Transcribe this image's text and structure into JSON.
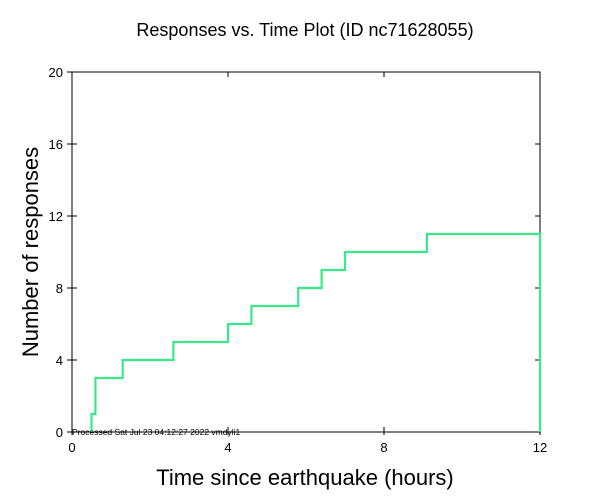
{
  "chart_data": {
    "type": "line",
    "title": "Responses vs. Time Plot (ID nc71628055)",
    "xlabel": "Time since earthquake (hours)",
    "ylabel": "Number of responses",
    "xlim": [
      0,
      12
    ],
    "ylim": [
      0,
      20
    ],
    "x_ticks": [
      0,
      4,
      8,
      12
    ],
    "y_ticks": [
      0,
      4,
      8,
      12,
      16,
      20
    ],
    "grid": false,
    "step": true,
    "series": [
      {
        "color": "#3ae88a",
        "x": [
          0.5,
          0.6,
          1.3,
          2.6,
          4.0,
          4.6,
          5.8,
          6.4,
          7.0,
          9.1,
          12.0,
          12.0
        ],
        "y": [
          1,
          3,
          4,
          5,
          6,
          7,
          8,
          9,
          10,
          11,
          11,
          0
        ]
      }
    ],
    "footer": "Processed Sat Jul 23 04:12:27 2022 vmdyli1"
  }
}
